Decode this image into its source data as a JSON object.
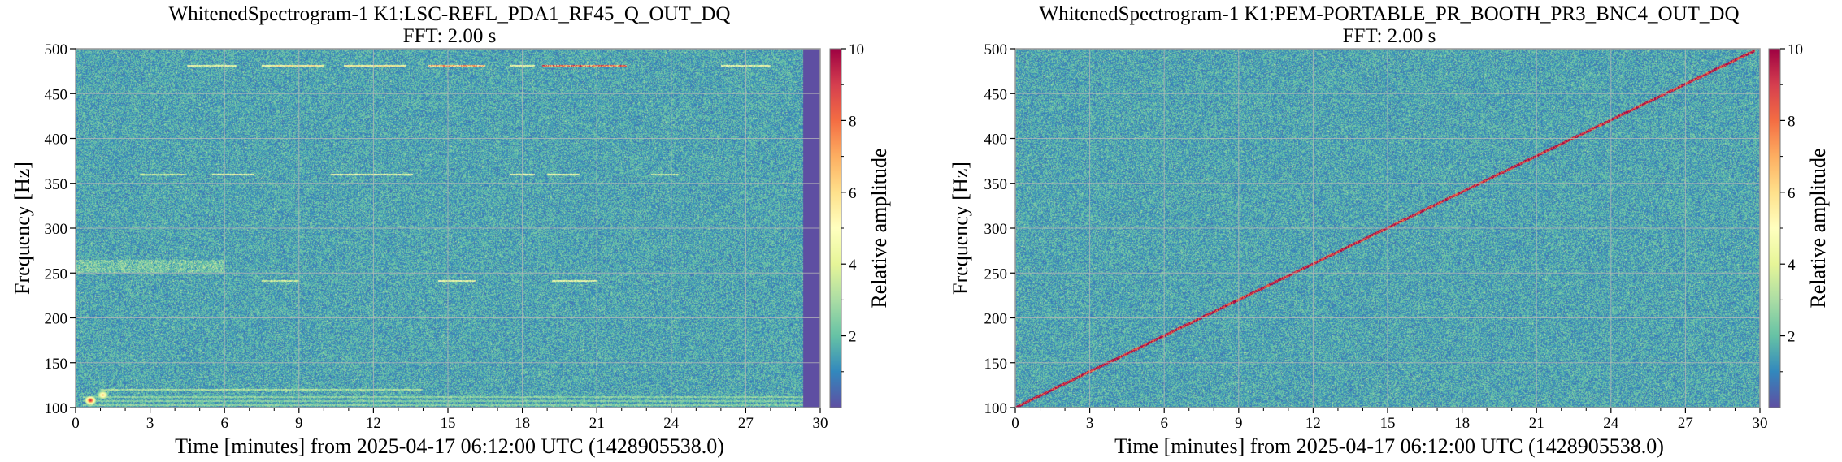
{
  "chart_data": [
    {
      "type": "heatmap",
      "title": "WhitenedSpectrogram-1 K1:LSC-REFL_PDA1_RF45_Q_OUT_DQ",
      "subtitle": "FFT: 2.00 s",
      "xlabel": "Time [minutes] from 2025-04-17 06:12:00 UTC (1428905538.0)",
      "ylabel": "Frequency [Hz]",
      "xlim": [
        0,
        30
      ],
      "ylim": [
        100,
        500
      ],
      "xticks": [
        "0",
        "3",
        "6",
        "9",
        "12",
        "15",
        "18",
        "21",
        "24",
        "27",
        "30"
      ],
      "yticks": [
        "100",
        "150",
        "200",
        "250",
        "300",
        "350",
        "400",
        "450",
        "500"
      ],
      "grid": true,
      "colorbar": {
        "label": "Relative amplitude",
        "range": [
          0,
          10
        ],
        "ticks": [
          "2",
          "4",
          "6",
          "8",
          "10"
        ],
        "colormap": "Spectral_r"
      },
      "background_level": 1.5,
      "no_data_after_minutes": 29.3,
      "lines": [
        {
          "freq": 481,
          "t_start": 4.5,
          "t_end": 6.5,
          "amplitude": 5
        },
        {
          "freq": 481,
          "t_start": 7.5,
          "t_end": 10.0,
          "amplitude": 6
        },
        {
          "freq": 481,
          "t_start": 10.8,
          "t_end": 13.3,
          "amplitude": 6
        },
        {
          "freq": 481,
          "t_start": 14.2,
          "t_end": 16.5,
          "amplitude": 8
        },
        {
          "freq": 481,
          "t_start": 17.5,
          "t_end": 18.5,
          "amplitude": 5
        },
        {
          "freq": 481,
          "t_start": 18.8,
          "t_end": 22.2,
          "amplitude": 9
        },
        {
          "freq": 481,
          "t_start": 26.0,
          "t_end": 28.0,
          "amplitude": 5
        },
        {
          "freq": 360,
          "t_start": 2.6,
          "t_end": 4.5,
          "amplitude": 4
        },
        {
          "freq": 360,
          "t_start": 5.5,
          "t_end": 7.2,
          "amplitude": 5
        },
        {
          "freq": 360,
          "t_start": 10.3,
          "t_end": 13.6,
          "amplitude": 5
        },
        {
          "freq": 360,
          "t_start": 17.5,
          "t_end": 18.5,
          "amplitude": 5
        },
        {
          "freq": 360,
          "t_start": 19.0,
          "t_end": 20.3,
          "amplitude": 5
        },
        {
          "freq": 360,
          "t_start": 23.2,
          "t_end": 24.3,
          "amplitude": 4
        },
        {
          "freq": 241,
          "t_start": 7.5,
          "t_end": 9.0,
          "amplitude": 4
        },
        {
          "freq": 241,
          "t_start": 14.6,
          "t_end": 16.1,
          "amplitude": 5
        },
        {
          "freq": 241,
          "t_start": 19.2,
          "t_end": 21.0,
          "amplitude": 5
        },
        {
          "freq": 120,
          "t_start": 1.0,
          "t_end": 14.0,
          "amplitude": 3.5
        },
        {
          "freq": 112,
          "t_start": 0.3,
          "t_end": 29.3,
          "amplitude": 3
        },
        {
          "freq": 107,
          "t_start": 0.3,
          "t_end": 29.3,
          "amplitude": 2.8
        },
        {
          "freq": 103,
          "t_start": 0.3,
          "t_end": 29.3,
          "amplitude": 3
        }
      ],
      "hotspots": [
        {
          "time": 0.6,
          "freq": 108,
          "amplitude": 10
        },
        {
          "time": 1.1,
          "freq": 114,
          "amplitude": 7
        }
      ],
      "bands": [
        {
          "f_start": 250,
          "f_end": 265,
          "t_start": 0,
          "t_end": 6,
          "amplitude": 3
        }
      ]
    },
    {
      "type": "heatmap",
      "title": "WhitenedSpectrogram-1 K1:PEM-PORTABLE_PR_BOOTH_PR3_BNC4_OUT_DQ",
      "subtitle": "FFT: 2.00 s",
      "xlabel": "Time [minutes] from 2025-04-17 06:12:00 UTC (1428905538.0)",
      "ylabel": "Frequency [Hz]",
      "xlim": [
        0,
        30
      ],
      "ylim": [
        100,
        500
      ],
      "xticks": [
        "0",
        "3",
        "6",
        "9",
        "12",
        "15",
        "18",
        "21",
        "24",
        "27",
        "30"
      ],
      "yticks": [
        "100",
        "150",
        "200",
        "250",
        "300",
        "350",
        "400",
        "450",
        "500"
      ],
      "grid": true,
      "colorbar": {
        "label": "Relative amplitude",
        "range": [
          0,
          10
        ],
        "ticks": [
          "2",
          "4",
          "6",
          "8",
          "10"
        ],
        "colormap": "Spectral_r"
      },
      "background_level": 1.5,
      "chirp": {
        "t_start": 0,
        "f_start": 100,
        "t_end": 29.8,
        "f_end": 498,
        "amplitude": 10
      }
    }
  ]
}
